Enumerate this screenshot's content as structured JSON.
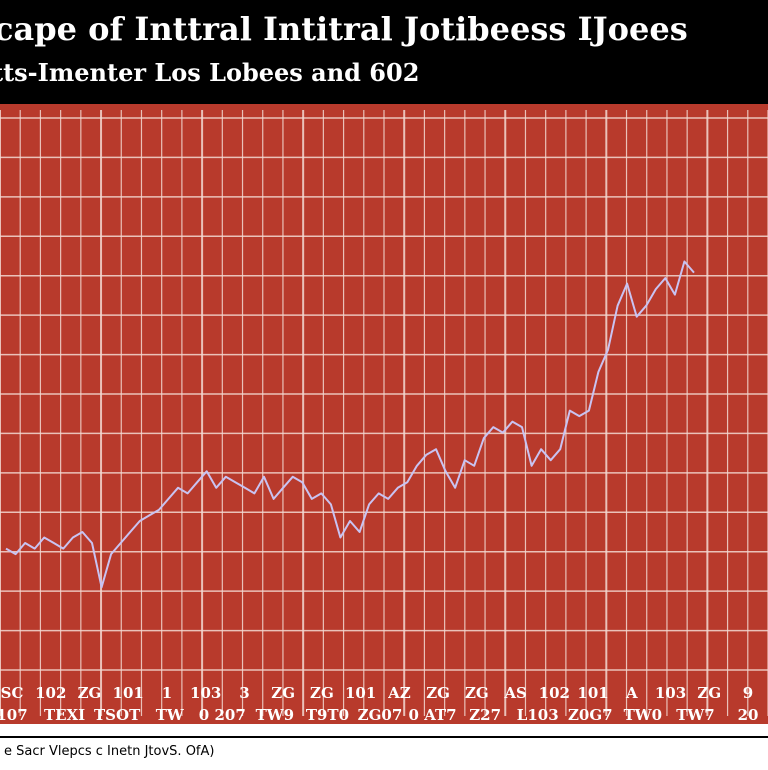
{
  "chart_data": {
    "type": "line",
    "title": "cape of Inttral Intitral Jotibeess IJoees",
    "subtitle": "tts-Imenter Los Lobees and 602",
    "footer_note": "e Sacr Vlepcs c Inetn JtovS. OfA)",
    "grid": true,
    "colors": {
      "background": "#b83a2c",
      "grid": "#f3d9d2",
      "line": "#c9c3f2",
      "header": "#000000"
    },
    "x_tick_rows": [
      [
        "SC",
        "102",
        "ZG",
        "101",
        "1",
        "103",
        "3",
        "ZG",
        "ZG",
        "101",
        "AZ",
        "ZG",
        "ZG",
        "AS",
        "102",
        "101",
        "A",
        "103",
        "ZG",
        "9"
      ],
      [
        "107",
        "TEXI",
        "TSOT",
        "TW",
        "0 207",
        "TW9",
        "T9T0",
        "ZG07",
        "0 AT7",
        "Z27",
        "L103",
        "Z0G7",
        "TW0",
        "TW7",
        "20"
      ]
    ],
    "series": [
      {
        "values": [
          0.22,
          0.21,
          0.23,
          0.22,
          0.24,
          0.23,
          0.22,
          0.24,
          0.25,
          0.23,
          0.15,
          0.21,
          0.23,
          0.25,
          0.27,
          0.28,
          0.29,
          0.31,
          0.33,
          0.32,
          0.34,
          0.36,
          0.33,
          0.35,
          0.34,
          0.33,
          0.32,
          0.35,
          0.31,
          0.33,
          0.35,
          0.34,
          0.31,
          0.32,
          0.3,
          0.24,
          0.27,
          0.25,
          0.3,
          0.32,
          0.31,
          0.33,
          0.34,
          0.37,
          0.39,
          0.4,
          0.36,
          0.33,
          0.38,
          0.37,
          0.42,
          0.44,
          0.43,
          0.45,
          0.44,
          0.37,
          0.4,
          0.38,
          0.4,
          0.47,
          0.46,
          0.47,
          0.54,
          0.58,
          0.66,
          0.7,
          0.64,
          0.66,
          0.69,
          0.71,
          0.68,
          0.74,
          0.72
        ]
      }
    ]
  }
}
